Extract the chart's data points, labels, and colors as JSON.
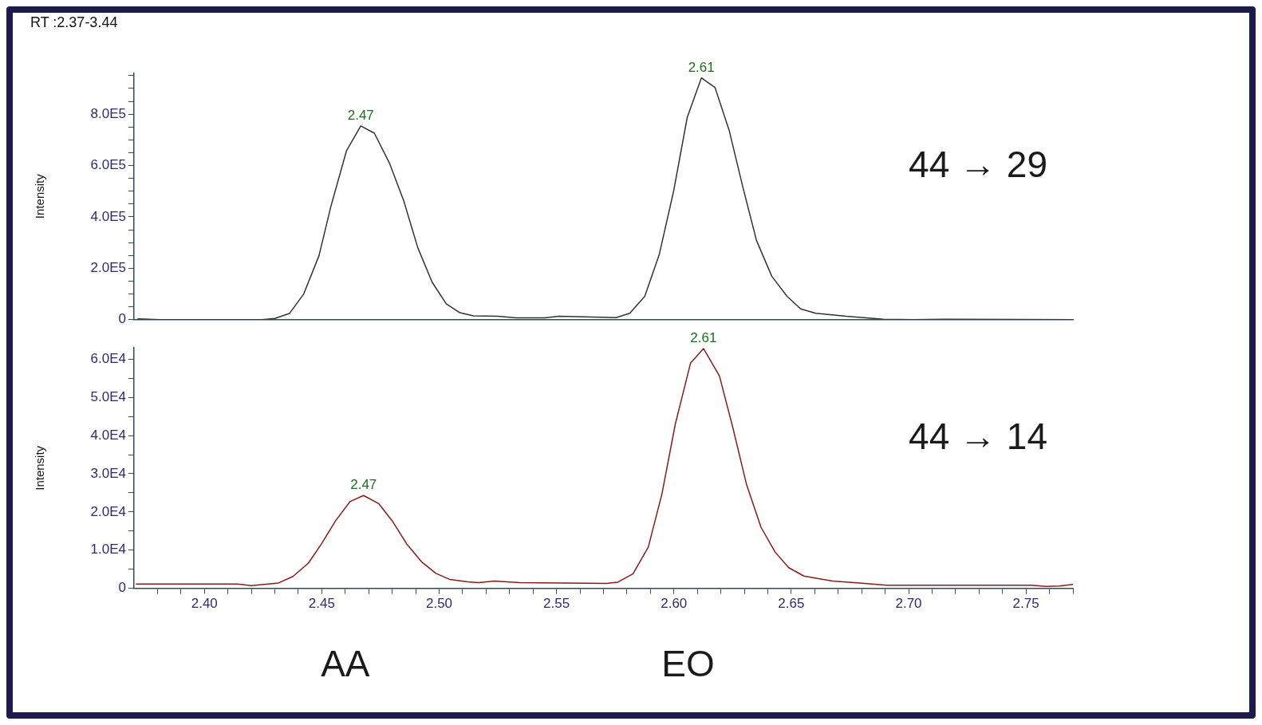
{
  "chart_data": [
    {
      "type": "line",
      "title": "RT :2.37-3.44",
      "ylabel": "Intensity",
      "xlim": [
        2.37,
        2.77
      ],
      "ylim": [
        0,
        960000
      ],
      "tick_labels": "y",
      "legend": false,
      "grid": false,
      "yticks": [
        0,
        {
          "value": 50000,
          "label": null
        },
        {
          "value": 200000,
          "label": "2.0E5"
        },
        {
          "value": 100000,
          "label": null
        },
        {
          "value": 150000,
          "label": null
        },
        {
          "value": 250000,
          "label": null
        },
        {
          "value": 300000,
          "label": null
        },
        {
          "value": 350000,
          "label": null
        },
        {
          "value": 400000,
          "label": "4.0E5"
        },
        {
          "value": 450000,
          "label": null
        },
        {
          "value": 500000,
          "label": null
        },
        {
          "value": 550000,
          "label": null
        },
        {
          "value": 600000,
          "label": "6.0E5"
        },
        {
          "value": 650000,
          "label": null
        },
        {
          "value": 700000,
          "label": null
        },
        {
          "value": 750000,
          "label": null
        },
        {
          "value": 800000,
          "label": "8.0E5"
        },
        {
          "value": 850000,
          "label": null
        },
        {
          "value": 900000,
          "label": null
        },
        {
          "value": 950000,
          "label": null
        }
      ],
      "series": [
        {
          "color": "#333333",
          "x": [
            2.3715,
            2.381,
            2.4246,
            2.43,
            2.4362,
            2.4423,
            2.4488,
            2.4539,
            2.4605,
            2.4666,
            2.4724,
            2.4788,
            2.4849,
            2.4909,
            2.497,
            2.503,
            2.5088,
            2.5146,
            2.525,
            2.5327,
            2.545,
            2.551,
            2.5754,
            2.5812,
            2.5876,
            2.5938,
            2.5999,
            2.6057,
            2.6117,
            2.6175,
            2.6236,
            2.6294,
            2.6352,
            2.6417,
            2.6482,
            2.654,
            2.6604,
            2.6734,
            2.6892,
            2.7022,
            2.7152,
            2.77
          ],
          "values": [
            3000,
            0,
            0,
            5000,
            24000,
            100000,
            249000,
            442000,
            657000,
            754000,
            726000,
            610000,
            463000,
            280000,
            146000,
            62000,
            27000,
            15000,
            13000,
            7000,
            7000,
            13000,
            8000,
            25000,
            91000,
            255000,
            501000,
            788000,
            941000,
            904000,
            735000,
            515000,
            308000,
            169000,
            91000,
            42000,
            25000,
            13000,
            2000,
            0,
            2000,
            0
          ]
        }
      ],
      "annotations": [
        {
          "text": "2.47",
          "x": 2.4666,
          "y": 754000
        },
        {
          "text": "2.61",
          "x": 2.6117,
          "y": 941000
        },
        "44 → 29"
      ]
    },
    {
      "type": "line",
      "ylabel": "Intensity",
      "xlim": [
        2.37,
        2.77
      ],
      "ylim": [
        0,
        63000
      ],
      "legend": false,
      "grid": false,
      "xticks": [
        {
          "value": 2.38,
          "label": null
        },
        {
          "value": 2.39,
          "label": null
        },
        {
          "value": 2.4,
          "label": "2.40"
        },
        {
          "value": 2.41,
          "label": null
        },
        {
          "value": 2.42,
          "label": null
        },
        {
          "value": 2.43,
          "label": null
        },
        {
          "value": 2.44,
          "label": null
        },
        2.45,
        {
          "value": 2.46,
          "label": null
        },
        {
          "value": 2.47,
          "label": null
        },
        {
          "value": 2.48,
          "label": null
        },
        {
          "value": 2.49,
          "label": null
        },
        {
          "value": 2.5,
          "label": "2.50"
        },
        {
          "value": 2.51,
          "label": null
        },
        {
          "value": 2.52,
          "label": null
        },
        {
          "value": 2.53,
          "label": null
        },
        {
          "value": 2.54,
          "label": null
        },
        2.55,
        {
          "value": 2.56,
          "label": null
        },
        {
          "value": 2.57,
          "label": null
        },
        {
          "value": 2.58,
          "label": null
        },
        {
          "value": 2.59,
          "label": null
        },
        {
          "value": 2.6,
          "label": "2.60"
        },
        {
          "value": 2.61,
          "label": null
        },
        {
          "value": 2.62,
          "label": null
        },
        {
          "value": 2.63,
          "label": null
        },
        {
          "value": 2.64,
          "label": null
        },
        2.65,
        {
          "value": 2.66,
          "label": null
        },
        {
          "value": 2.67,
          "label": null
        },
        {
          "value": 2.68,
          "label": null
        },
        {
          "value": 2.69,
          "label": null
        },
        {
          "value": 2.7,
          "label": "2.70"
        },
        {
          "value": 2.71,
          "label": null
        },
        {
          "value": 2.72,
          "label": null
        },
        {
          "value": 2.73,
          "label": null
        },
        {
          "value": 2.74,
          "label": null
        },
        2.75,
        {
          "value": 2.76,
          "label": null
        },
        {
          "value": 2.77,
          "label": null
        }
      ],
      "yticks": [
        0,
        {
          "value": 5000,
          "label": null
        },
        {
          "value": 10000,
          "label": "1.0E4"
        },
        {
          "value": 15000,
          "label": null
        },
        {
          "value": 20000,
          "label": "2.0E4"
        },
        {
          "value": 25000,
          "label": null
        },
        {
          "value": 30000,
          "label": "3.0E4"
        },
        {
          "value": 35000,
          "label": null
        },
        {
          "value": 40000,
          "label": "4.0E4"
        },
        {
          "value": 45000,
          "label": null
        },
        {
          "value": 50000,
          "label": "5.0E4"
        },
        {
          "value": 55000,
          "label": null
        },
        {
          "value": 60000,
          "label": "6.0E4"
        }
      ],
      "series": [
        {
          "color": "#8b1a1a",
          "x": [
            2.3708,
            2.4141,
            2.4199,
            2.4316,
            2.4377,
            2.4443,
            2.4498,
            2.456,
            2.462,
            2.4678,
            2.4742,
            2.4803,
            2.4863,
            2.4924,
            2.4986,
            2.5046,
            2.5122,
            2.5168,
            2.5236,
            2.5343,
            2.5718,
            2.5761,
            2.5826,
            2.5891,
            2.5949,
            2.6006,
            2.6071,
            2.6126,
            2.6194,
            2.6251,
            2.6309,
            2.6371,
            2.6431,
            2.6489,
            2.6554,
            2.6676,
            2.6791,
            2.6907,
            2.7526,
            2.7584,
            2.7642,
            2.77
          ],
          "values": [
            1100,
            1100,
            700,
            1400,
            3100,
            6600,
            11600,
            17800,
            22700,
            24300,
            22200,
            17400,
            11500,
            7000,
            3900,
            2300,
            1700,
            1500,
            1900,
            1500,
            1300,
            1600,
            3800,
            10800,
            24700,
            43000,
            59000,
            62800,
            55600,
            42100,
            27300,
            16000,
            9500,
            5400,
            3200,
            1900,
            1400,
            800,
            800,
            500,
            600,
            1000
          ]
        }
      ],
      "annotations": [
        {
          "text": "2.47",
          "x": 2.4678,
          "y": 24300
        },
        {
          "text": "2.61",
          "x": 2.6126,
          "y": 62800
        },
        "44 → 14",
        "AA",
        "EO"
      ]
    }
  ]
}
